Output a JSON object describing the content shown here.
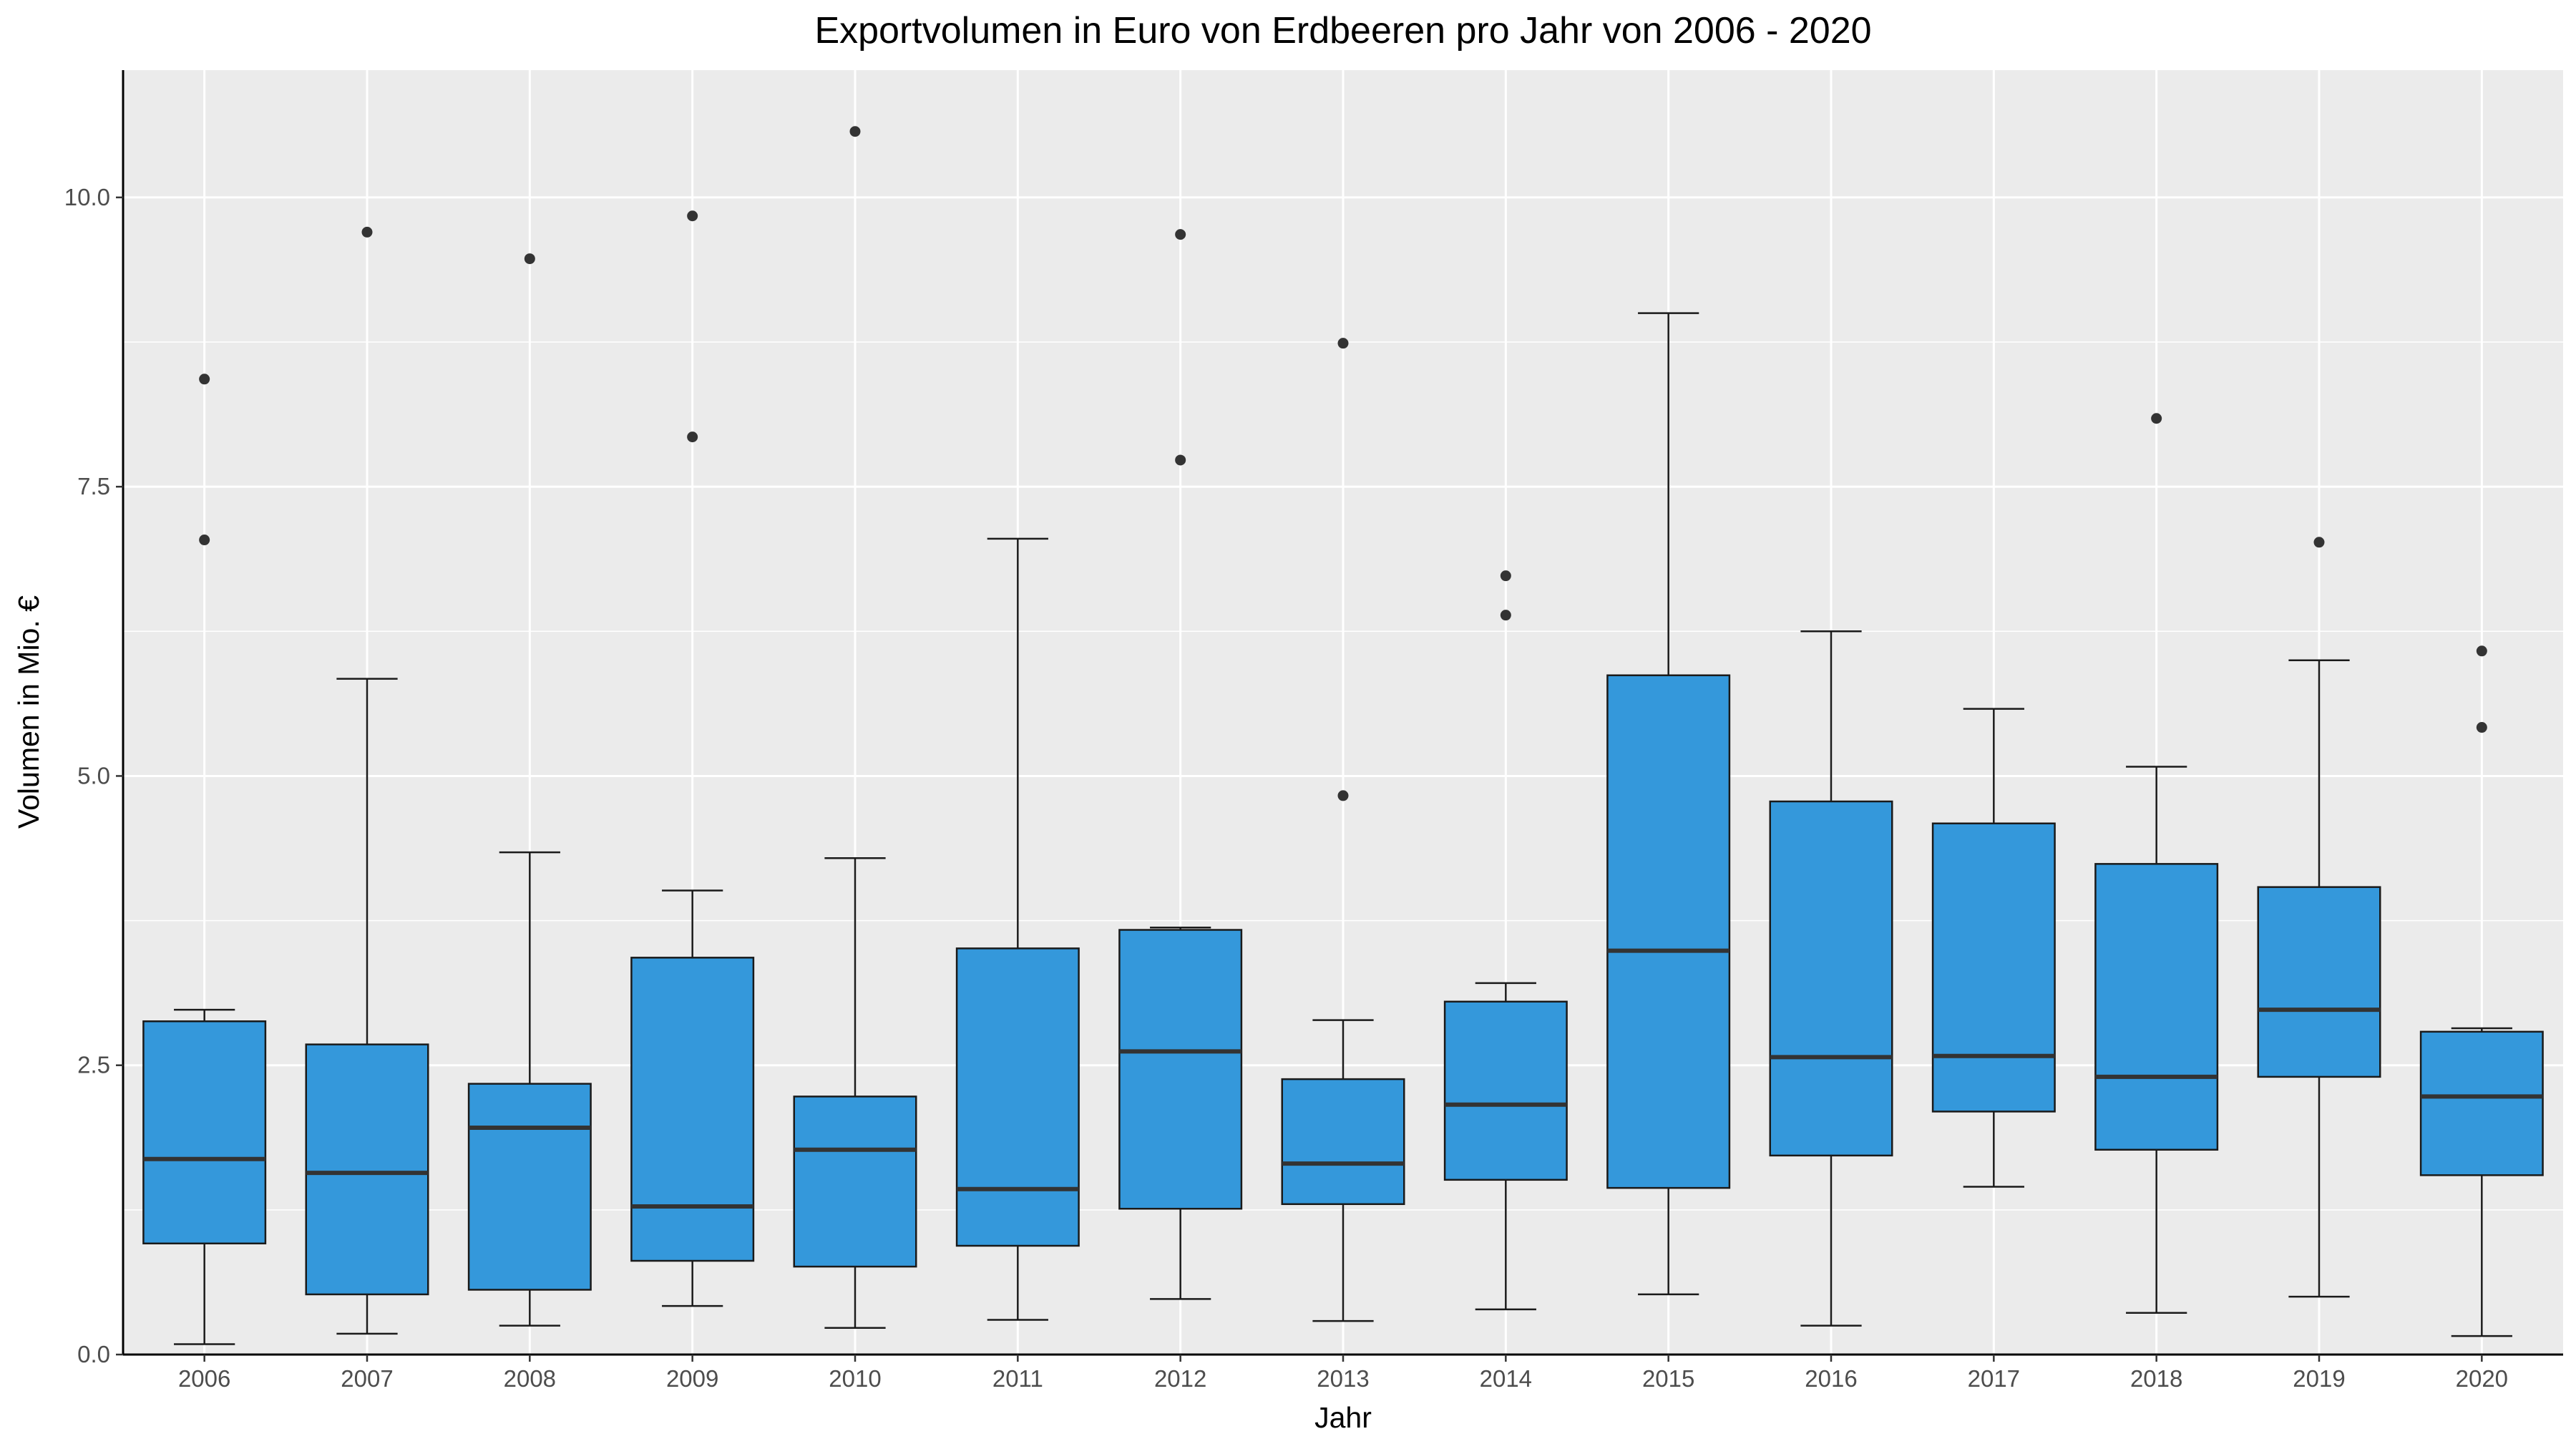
{
  "chart_data": {
    "type": "boxplot",
    "title": "Exportvolumen in Euro von Erdbeeren pro Jahr von 2006 - 2020",
    "xlabel": "Jahr",
    "ylabel": "Volumen in Mio. €",
    "ylim": [
      0,
      11.1
    ],
    "y_ticks": [
      0,
      2.5,
      5,
      7.5,
      10
    ],
    "y_tick_labels": [
      "0.0",
      "2.5",
      "5.0",
      "7.5",
      "10.0"
    ],
    "grid": true,
    "legend": "none",
    "fill_color": "#3498db",
    "panel_color": "#ebebeb",
    "categories": [
      "2006",
      "2007",
      "2008",
      "2009",
      "2010",
      "2011",
      "2012",
      "2013",
      "2014",
      "2015",
      "2016",
      "2017",
      "2018",
      "2019",
      "2020"
    ],
    "boxes": [
      {
        "year": "2006",
        "whisker_low": 0.09,
        "q1": 0.96,
        "median": 1.69,
        "q3": 2.88,
        "whisker_high": 2.98,
        "outliers": [
          7.04,
          8.43
        ]
      },
      {
        "year": "2007",
        "whisker_low": 0.18,
        "q1": 0.52,
        "median": 1.57,
        "q3": 2.68,
        "whisker_high": 5.84,
        "outliers": [
          9.7
        ]
      },
      {
        "year": "2008",
        "whisker_low": 0.25,
        "q1": 0.56,
        "median": 1.96,
        "q3": 2.34,
        "whisker_high": 4.34,
        "outliers": [
          9.47
        ]
      },
      {
        "year": "2009",
        "whisker_low": 0.42,
        "q1": 0.81,
        "median": 1.28,
        "q3": 3.43,
        "whisker_high": 4.01,
        "outliers": [
          7.93,
          9.84
        ]
      },
      {
        "year": "2010",
        "whisker_low": 0.23,
        "q1": 0.76,
        "median": 1.77,
        "q3": 2.23,
        "whisker_high": 4.29,
        "outliers": [
          10.57
        ]
      },
      {
        "year": "2011",
        "whisker_low": 0.3,
        "q1": 0.94,
        "median": 1.43,
        "q3": 3.51,
        "whisker_high": 7.05,
        "outliers": []
      },
      {
        "year": "2012",
        "whisker_low": 0.48,
        "q1": 1.26,
        "median": 2.62,
        "q3": 3.67,
        "whisker_high": 3.69,
        "outliers": [
          7.73,
          9.68
        ]
      },
      {
        "year": "2013",
        "whisker_low": 0.29,
        "q1": 1.3,
        "median": 1.65,
        "q3": 2.38,
        "whisker_high": 2.89,
        "outliers": [
          4.83,
          8.74
        ]
      },
      {
        "year": "2014",
        "whisker_low": 0.39,
        "q1": 1.51,
        "median": 2.16,
        "q3": 3.05,
        "whisker_high": 3.21,
        "outliers": [
          6.39,
          6.73
        ]
      },
      {
        "year": "2015",
        "whisker_low": 0.52,
        "q1": 1.44,
        "median": 3.49,
        "q3": 5.87,
        "whisker_high": 9.0,
        "outliers": []
      },
      {
        "year": "2016",
        "whisker_low": 0.25,
        "q1": 1.72,
        "median": 2.57,
        "q3": 4.78,
        "whisker_high": 6.25,
        "outliers": []
      },
      {
        "year": "2017",
        "whisker_low": 1.45,
        "q1": 2.1,
        "median": 2.58,
        "q3": 4.59,
        "whisker_high": 5.58,
        "outliers": []
      },
      {
        "year": "2018",
        "whisker_low": 0.36,
        "q1": 1.77,
        "median": 2.4,
        "q3": 4.24,
        "whisker_high": 5.08,
        "outliers": [
          8.09
        ]
      },
      {
        "year": "2019",
        "whisker_low": 0.5,
        "q1": 2.4,
        "median": 2.98,
        "q3": 4.04,
        "whisker_high": 6.0,
        "outliers": [
          7.02
        ]
      },
      {
        "year": "2020",
        "whisker_low": 0.16,
        "q1": 1.55,
        "median": 2.23,
        "q3": 2.79,
        "whisker_high": 2.82,
        "outliers": [
          5.42,
          6.08
        ]
      }
    ]
  }
}
